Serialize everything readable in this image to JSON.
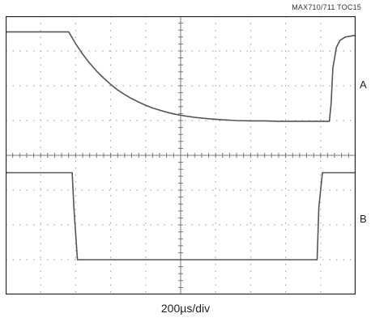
{
  "figure_id": "MAX710/711 TOC15",
  "timebase_label": "200µs/div",
  "chart_data": {
    "type": "line",
    "title": "",
    "xlabel": "200µs/div",
    "grid": true,
    "divisions": {
      "x": 10,
      "y": 8
    },
    "x_unit": "div",
    "y_unit": "div",
    "xlim": [
      0,
      10
    ],
    "ylim": [
      0,
      8
    ],
    "series": [
      {
        "name": "A",
        "color": "#555555",
        "x": [
          0,
          1.8,
          2.0,
          2.2,
          2.4,
          2.6,
          2.8,
          3.0,
          3.2,
          3.4,
          3.6,
          3.8,
          4.0,
          4.2,
          4.4,
          4.6,
          4.8,
          5.0,
          5.4,
          5.8,
          6.2,
          6.6,
          7.0,
          7.4,
          7.8,
          8.2,
          8.8,
          9.25,
          9.3,
          9.35,
          9.45,
          9.55,
          9.7,
          10.0
        ],
        "y": [
          7.55,
          7.55,
          7.21,
          6.91,
          6.65,
          6.42,
          6.22,
          6.04,
          5.88,
          5.75,
          5.63,
          5.53,
          5.44,
          5.36,
          5.3,
          5.24,
          5.19,
          5.15,
          5.09,
          5.05,
          5.02,
          5.0,
          4.99,
          4.99,
          4.98,
          4.98,
          4.98,
          4.98,
          5.5,
          6.5,
          7.1,
          7.3,
          7.4,
          7.45
        ]
      },
      {
        "name": "B",
        "color": "#555555",
        "x": [
          0,
          1.9,
          1.95,
          2.05,
          6.5,
          8.9,
          8.95,
          9.05,
          10.0
        ],
        "y": [
          3.5,
          3.5,
          2.5,
          1.0,
          1.0,
          1.0,
          2.5,
          3.5,
          3.5
        ]
      }
    ]
  }
}
